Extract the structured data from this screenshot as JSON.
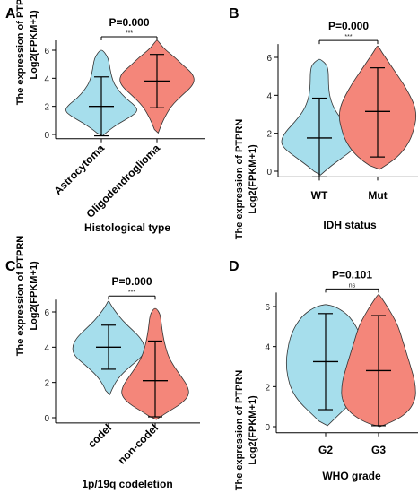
{
  "colors": {
    "left": "#A6DEEC",
    "right": "#F4867A",
    "stroke": "#333333",
    "axis": "#000000"
  },
  "chart_data": [
    {
      "type": "violin",
      "panel_label": "A",
      "pvalue_text": "P=0.000",
      "sig_label": "***",
      "ylabel": [
        "The expression of PTPRN",
        "Log2(FPKM+1)"
      ],
      "xlabel": "Histological type",
      "ylim": [
        -0.3,
        6.7
      ],
      "yticks": [
        0,
        2,
        4,
        6
      ],
      "tick_labels": [
        "0",
        "2",
        "4",
        "6"
      ],
      "categories": [
        "Astrocytoma",
        "Oligodendroglioma"
      ],
      "series": [
        {
          "name": "Astrocytoma",
          "median": 2.0,
          "whisker_low": -0.1,
          "whisker_high": 4.1,
          "profile": [
            [
              -0.1,
              0.02
            ],
            [
              0.3,
              0.12
            ],
            [
              0.8,
              0.28
            ],
            [
              1.3,
              0.48
            ],
            [
              1.7,
              0.58
            ],
            [
              2.1,
              0.52
            ],
            [
              2.6,
              0.38
            ],
            [
              3.2,
              0.26
            ],
            [
              3.8,
              0.18
            ],
            [
              4.6,
              0.14
            ],
            [
              5.2,
              0.12
            ],
            [
              5.6,
              0.09
            ],
            [
              6.0,
              0.02
            ]
          ]
        },
        {
          "name": "Oligodendroglioma",
          "median": 3.8,
          "whisker_low": 1.9,
          "whisker_high": 5.7,
          "profile": [
            [
              0.1,
              0.02
            ],
            [
              0.6,
              0.06
            ],
            [
              1.2,
              0.12
            ],
            [
              2.0,
              0.22
            ],
            [
              2.8,
              0.4
            ],
            [
              3.4,
              0.55
            ],
            [
              3.9,
              0.6
            ],
            [
              4.4,
              0.55
            ],
            [
              4.9,
              0.42
            ],
            [
              5.5,
              0.28
            ],
            [
              6.0,
              0.14
            ],
            [
              6.4,
              0.06
            ],
            [
              6.7,
              0.01
            ]
          ]
        }
      ]
    },
    {
      "type": "violin",
      "panel_label": "B",
      "pvalue_text": "P=0.000",
      "sig_label": "***",
      "ylabel": [
        "The expression of PTPRN",
        "Log2(FPKM+1)"
      ],
      "xlabel": "IDH status",
      "ylim": [
        -0.3,
        6.7
      ],
      "yticks": [
        0,
        2,
        4,
        6
      ],
      "tick_labels": [
        "0",
        "2",
        "4",
        "6"
      ],
      "categories": [
        "WT",
        "Mut"
      ],
      "series": [
        {
          "name": "WT",
          "median": 1.75,
          "whisker_low": -0.3,
          "whisker_high": 3.85,
          "profile": [
            [
              -0.2,
              0.02
            ],
            [
              0.2,
              0.15
            ],
            [
              0.7,
              0.35
            ],
            [
              1.2,
              0.55
            ],
            [
              1.6,
              0.6
            ],
            [
              2.1,
              0.52
            ],
            [
              2.6,
              0.38
            ],
            [
              3.2,
              0.24
            ],
            [
              3.9,
              0.16
            ],
            [
              4.6,
              0.14
            ],
            [
              5.2,
              0.14
            ],
            [
              5.6,
              0.12
            ],
            [
              5.9,
              0.02
            ]
          ]
        },
        {
          "name": "Mut",
          "median": 3.15,
          "whisker_low": 0.75,
          "whisker_high": 5.45,
          "profile": [
            [
              0.1,
              0.03
            ],
            [
              0.5,
              0.22
            ],
            [
              1.0,
              0.38
            ],
            [
              1.6,
              0.5
            ],
            [
              2.2,
              0.56
            ],
            [
              2.8,
              0.6
            ],
            [
              3.4,
              0.58
            ],
            [
              4.0,
              0.5
            ],
            [
              4.6,
              0.4
            ],
            [
              5.2,
              0.28
            ],
            [
              5.8,
              0.16
            ],
            [
              6.3,
              0.06
            ],
            [
              6.6,
              0.01
            ]
          ]
        }
      ]
    },
    {
      "type": "violin",
      "panel_label": "C",
      "pvalue_text": "P=0.000",
      "sig_label": "***",
      "ylabel": [
        "The expression of PTPRN",
        "Log2(FPKM+1)"
      ],
      "xlabel": "1p/19q codeletion",
      "ylim": [
        -0.3,
        6.7
      ],
      "yticks": [
        0,
        2,
        4,
        6
      ],
      "tick_labels": [
        "0",
        "2",
        "4",
        "6"
      ],
      "categories": [
        "codel",
        "non-codel"
      ],
      "series": [
        {
          "name": "codel",
          "median": 4.0,
          "whisker_low": 2.75,
          "whisker_high": 5.25,
          "profile": [
            [
              1.3,
              0.02
            ],
            [
              1.8,
              0.08
            ],
            [
              2.4,
              0.2
            ],
            [
              3.0,
              0.4
            ],
            [
              3.5,
              0.58
            ],
            [
              4.0,
              0.62
            ],
            [
              4.5,
              0.55
            ],
            [
              5.0,
              0.4
            ],
            [
              5.5,
              0.24
            ],
            [
              6.0,
              0.12
            ],
            [
              6.4,
              0.04
            ],
            [
              6.6,
              0.01
            ]
          ]
        },
        {
          "name": "non-codel",
          "median": 2.1,
          "whisker_low": 0.05,
          "whisker_high": 4.35,
          "profile": [
            [
              -0.1,
              0.02
            ],
            [
              0.3,
              0.2
            ],
            [
              0.8,
              0.45
            ],
            [
              1.3,
              0.58
            ],
            [
              1.8,
              0.55
            ],
            [
              2.3,
              0.45
            ],
            [
              2.9,
              0.32
            ],
            [
              3.5,
              0.22
            ],
            [
              4.2,
              0.16
            ],
            [
              4.9,
              0.12
            ],
            [
              5.5,
              0.1
            ],
            [
              5.9,
              0.08
            ],
            [
              6.2,
              0.02
            ]
          ]
        }
      ]
    },
    {
      "type": "violin",
      "panel_label": "D",
      "pvalue_text": "P=0.101",
      "sig_label": "ns",
      "ylabel": [
        "The expression of PTPRN",
        "Log2(FPKM+1)"
      ],
      "xlabel": "WHO grade",
      "ylim": [
        -0.3,
        6.7
      ],
      "yticks": [
        0,
        2,
        4,
        6
      ],
      "tick_labels": [
        "0",
        "2",
        "4",
        "6"
      ],
      "categories": [
        "G2",
        "G3"
      ],
      "series": [
        {
          "name": "G2",
          "median": 3.25,
          "whisker_low": 0.85,
          "whisker_high": 5.65,
          "profile": [
            [
              0.05,
              0.03
            ],
            [
              0.5,
              0.18
            ],
            [
              1.2,
              0.42
            ],
            [
              1.8,
              0.55
            ],
            [
              2.5,
              0.62
            ],
            [
              3.2,
              0.64
            ],
            [
              3.8,
              0.62
            ],
            [
              4.4,
              0.58
            ],
            [
              5.0,
              0.5
            ],
            [
              5.6,
              0.36
            ],
            [
              6.0,
              0.16
            ],
            [
              6.1,
              0.01
            ]
          ]
        },
        {
          "name": "G3",
          "median": 2.8,
          "whisker_low": 0.05,
          "whisker_high": 5.55,
          "profile": [
            [
              0.0,
              0.02
            ],
            [
              0.3,
              0.28
            ],
            [
              0.8,
              0.5
            ],
            [
              1.4,
              0.6
            ],
            [
              2.0,
              0.6
            ],
            [
              2.6,
              0.56
            ],
            [
              3.2,
              0.5
            ],
            [
              3.8,
              0.44
            ],
            [
              4.4,
              0.38
            ],
            [
              5.0,
              0.32
            ],
            [
              5.6,
              0.22
            ],
            [
              6.2,
              0.1
            ],
            [
              6.6,
              0.01
            ]
          ]
        }
      ]
    }
  ]
}
